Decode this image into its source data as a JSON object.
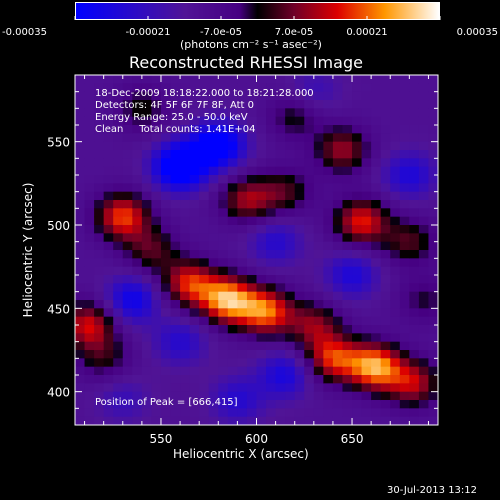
{
  "chart_data": {
    "type": "heatmap",
    "title": "Reconstructed RHESSI Image",
    "xlabel": "Heliocentric X (arcsec)",
    "ylabel": "Heliocentric Y (arcsec)",
    "xlim": [
      505,
      695
    ],
    "ylim": [
      380,
      590
    ],
    "xticks": [
      550,
      600,
      650
    ],
    "yticks": [
      400,
      450,
      500,
      550
    ],
    "colorbar": {
      "label": "(photons cm⁻² s⁻¹ asec⁻²)",
      "range": [
        -0.00035,
        0.00035
      ],
      "tick_labels": [
        "-0.00035",
        "-0.00021",
        "-7.0e-05",
        "7.0e-05",
        "0.00021",
        "0.00035"
      ]
    },
    "annotations": [
      "18-Dec-2009 18:18:22.000 to 18:21:28.000",
      "Detectors: 4F 5F 6F 7F 8F, Att 0",
      "Energy Range: 25.0 - 50.0 keV",
      "Clean     Total counts: 1.41E+04"
    ],
    "peak_label": "Position of Peak = [666,415]",
    "peak": [
      666,
      415
    ],
    "blobs": [
      {
        "x": 585,
        "y": 455,
        "v": 0.00035
      },
      {
        "x": 605,
        "y": 448,
        "v": 0.0003
      },
      {
        "x": 565,
        "y": 465,
        "v": 0.00026
      },
      {
        "x": 662,
        "y": 415,
        "v": 0.00034
      },
      {
        "x": 640,
        "y": 420,
        "v": 0.00026
      },
      {
        "x": 682,
        "y": 405,
        "v": 0.00022
      },
      {
        "x": 630,
        "y": 440,
        "v": 0.00018
      },
      {
        "x": 530,
        "y": 505,
        "v": 0.00028
      },
      {
        "x": 545,
        "y": 485,
        "v": 0.00015
      },
      {
        "x": 595,
        "y": 515,
        "v": 0.0002
      },
      {
        "x": 615,
        "y": 520,
        "v": 0.00014
      },
      {
        "x": 655,
        "y": 502,
        "v": 0.00026
      },
      {
        "x": 680,
        "y": 490,
        "v": 0.00015
      },
      {
        "x": 645,
        "y": 545,
        "v": 0.0002
      },
      {
        "x": 620,
        "y": 565,
        "v": 0.00012
      },
      {
        "x": 512,
        "y": 440,
        "v": 0.00024
      },
      {
        "x": 520,
        "y": 420,
        "v": 0.00012
      },
      {
        "x": 540,
        "y": 570,
        "v": 0.00012
      },
      {
        "x": 688,
        "y": 455,
        "v": 0.0001
      },
      {
        "x": 560,
        "y": 535,
        "v": -0.0003
      },
      {
        "x": 580,
        "y": 548,
        "v": -0.00026
      },
      {
        "x": 535,
        "y": 455,
        "v": -0.00018
      },
      {
        "x": 615,
        "y": 410,
        "v": -0.00015
      },
      {
        "x": 590,
        "y": 395,
        "v": -0.00012
      },
      {
        "x": 680,
        "y": 530,
        "v": -0.00014
      },
      {
        "x": 650,
        "y": 470,
        "v": -0.00014
      },
      {
        "x": 560,
        "y": 430,
        "v": -0.00012
      },
      {
        "x": 610,
        "y": 490,
        "v": -0.00012
      },
      {
        "x": 530,
        "y": 395,
        "v": -8e-05
      },
      {
        "x": 630,
        "y": 580,
        "v": -8e-05
      }
    ]
  },
  "footer": {
    "timestamp": "30-Jul-2013 13:12"
  }
}
